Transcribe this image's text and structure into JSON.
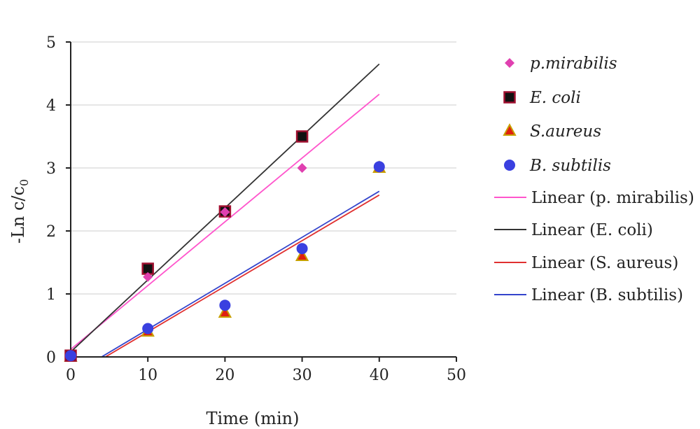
{
  "chart_data": {
    "type": "scatter",
    "xlabel": "Time (min)",
    "ylabel_main": "-Ln c/c",
    "ylabel_subscript": "0",
    "xlim": [
      0,
      50
    ],
    "ylim": [
      0,
      5
    ],
    "x_ticks": [
      "0",
      "10",
      "20",
      "30",
      "40",
      "50"
    ],
    "y_ticks": [
      "0",
      "1",
      "2",
      "3",
      "4",
      "5"
    ],
    "grid": "horizontal",
    "legend_position": "right",
    "series": [
      {
        "name": "p.mirabilis",
        "marker": "diamond",
        "color": "#e040b0",
        "points": [
          [
            0,
            0.02
          ],
          [
            10,
            1.27
          ],
          [
            20,
            2.3
          ],
          [
            30,
            3.0
          ],
          [
            40,
            3.0
          ]
        ]
      },
      {
        "name": "E. coli",
        "marker": "square",
        "color": "#111111",
        "edge": "#a01030",
        "points": [
          [
            0,
            0.02
          ],
          [
            10,
            1.4
          ],
          [
            20,
            2.31
          ],
          [
            30,
            3.5
          ]
        ]
      },
      {
        "name": "S.aureus",
        "marker": "triangle",
        "color": "#e02010",
        "edge": "#c8a000",
        "points": [
          [
            0,
            0.0
          ],
          [
            10,
            0.4
          ],
          [
            20,
            0.7
          ],
          [
            30,
            1.6
          ],
          [
            40,
            3.0
          ]
        ]
      },
      {
        "name": "B. subtilis",
        "marker": "circle",
        "color": "#3a40e0",
        "points": [
          [
            0,
            0.02
          ],
          [
            10,
            0.45
          ],
          [
            20,
            0.82
          ],
          [
            30,
            1.72
          ],
          [
            40,
            3.02
          ]
        ]
      }
    ],
    "trendlines": [
      {
        "name": "Linear (p. mirabilis)",
        "color": "#ff55cc",
        "x": [
          0,
          40
        ],
        "y": [
          0.12,
          4.17
        ]
      },
      {
        "name": "Linear (E. coli)",
        "color": "#333333",
        "x": [
          0,
          40
        ],
        "y": [
          0.08,
          4.65
        ]
      },
      {
        "name": "Linear (S. aureus)",
        "color": "#e03030",
        "x": [
          4.5,
          40
        ],
        "y": [
          0.0,
          2.57
        ]
      },
      {
        "name": "Linear (B. subtilis)",
        "color": "#3344cc",
        "x": [
          4.0,
          40
        ],
        "y": [
          0.0,
          2.63
        ]
      }
    ]
  }
}
